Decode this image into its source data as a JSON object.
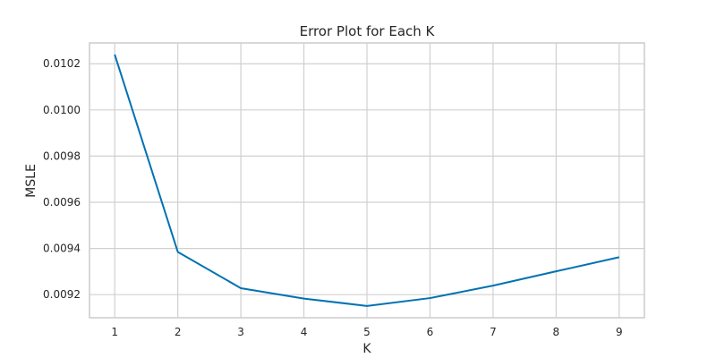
{
  "chart_data": {
    "type": "line",
    "title": "Error Plot for Each K",
    "xlabel": "K",
    "ylabel": "MSLE",
    "x": [
      1,
      2,
      3,
      4,
      5,
      6,
      7,
      8,
      9
    ],
    "series": [
      {
        "values": [
          0.01024,
          0.009385,
          0.009228,
          0.009183,
          0.009151,
          0.009185,
          0.009239,
          0.009301,
          0.009362
        ],
        "color": "#0072b2"
      }
    ],
    "xticks": [
      1,
      2,
      3,
      4,
      5,
      6,
      7,
      8,
      9
    ],
    "xtick_labels": [
      "1",
      "2",
      "3",
      "4",
      "5",
      "6",
      "7",
      "8",
      "9"
    ],
    "yticks": [
      0.0092,
      0.0094,
      0.0096,
      0.0098,
      0.01,
      0.0102
    ],
    "ytick_labels": [
      "0.0092",
      "0.0094",
      "0.0096",
      "0.0098",
      "0.0100",
      "0.0102"
    ],
    "xlim": [
      0.6,
      9.4
    ],
    "ylim": [
      0.0091,
      0.01029
    ],
    "grid": true,
    "legend": "none"
  }
}
